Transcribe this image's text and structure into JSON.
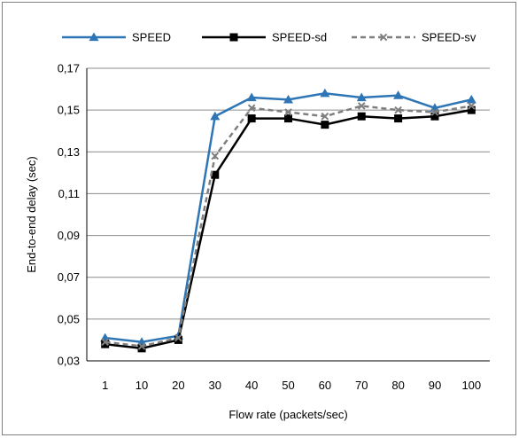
{
  "chart_data": {
    "type": "line",
    "title": "",
    "xlabel": "Flow rate (packets/sec)",
    "ylabel": "End-to-end delay (sec)",
    "categories": [
      "1",
      "10",
      "20",
      "30",
      "40",
      "50",
      "60",
      "70",
      "80",
      "90",
      "100"
    ],
    "ylim": [
      0.03,
      0.17
    ],
    "yticks": [
      "0,03",
      "0,05",
      "0,07",
      "0,09",
      "0,11",
      "0,13",
      "0,15",
      "0,17"
    ],
    "grid": true,
    "legend_position": "top",
    "series": [
      {
        "name": "SPEED",
        "color": "#2E75B6",
        "marker": "triangle",
        "dash": "solid",
        "values": [
          0.041,
          0.039,
          0.042,
          0.147,
          0.156,
          0.155,
          0.158,
          0.156,
          0.157,
          0.151,
          0.155
        ]
      },
      {
        "name": "SPEED-sd",
        "color": "#000000",
        "marker": "square",
        "dash": "solid",
        "values": [
          0.038,
          0.036,
          0.04,
          0.119,
          0.146,
          0.146,
          0.143,
          0.147,
          0.146,
          0.147,
          0.15
        ]
      },
      {
        "name": "SPEED-sv",
        "color": "#7F7F7F",
        "marker": "x",
        "dash": "dashed",
        "values": [
          0.039,
          0.037,
          0.041,
          0.128,
          0.151,
          0.149,
          0.147,
          0.152,
          0.15,
          0.149,
          0.152
        ]
      }
    ]
  }
}
